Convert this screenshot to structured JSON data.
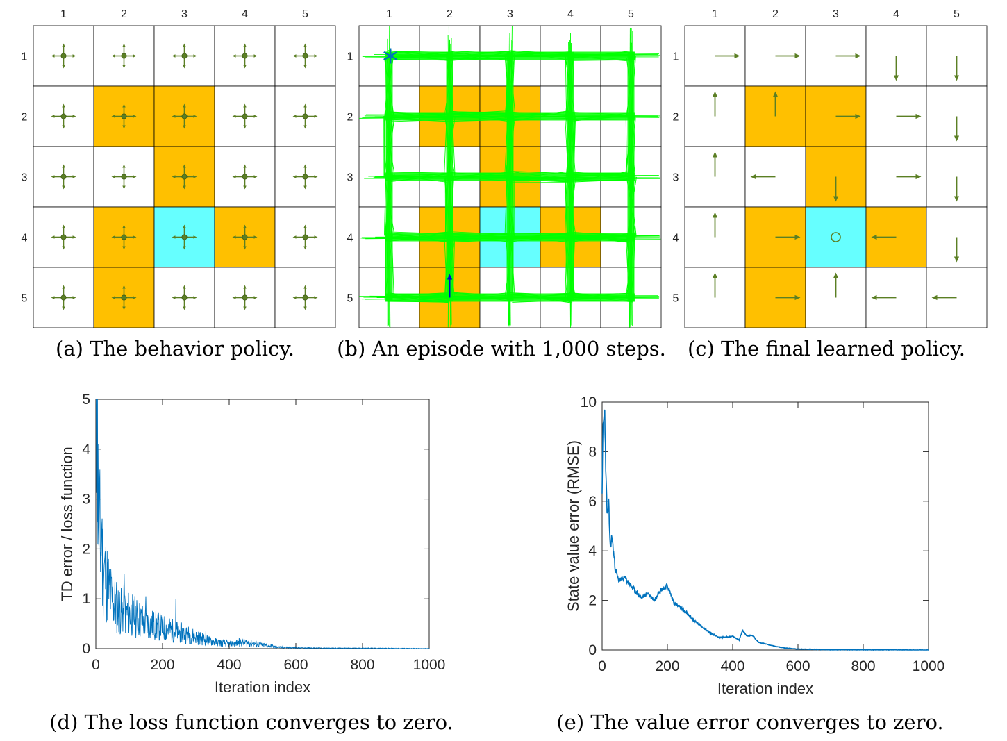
{
  "grid": {
    "row_labels": [
      "1",
      "2",
      "3",
      "4",
      "5"
    ],
    "col_labels": [
      "1",
      "2",
      "3",
      "4",
      "5"
    ],
    "forbidden_cells": [
      [
        2,
        2
      ],
      [
        2,
        3
      ],
      [
        3,
        3
      ],
      [
        4,
        2
      ],
      [
        4,
        4
      ],
      [
        5,
        2
      ]
    ],
    "target_cell": [
      4,
      3
    ],
    "colors": {
      "forbidden": "#FFC000",
      "target": "#66FFFF",
      "arrow": "#5B7F24",
      "trajectory": "#00FF00",
      "start_marker": "#0072BD",
      "final_arrow": "#0000CC"
    }
  },
  "panels": {
    "a": {
      "caption": "(a) The behavior policy.",
      "policy": "uniform",
      "icons": "four-way-arrow-icon"
    },
    "b": {
      "caption": "(b) An episode with 1,000 steps.",
      "start_cell": [
        1,
        1
      ],
      "end_cell": [
        5,
        2
      ],
      "end_direction": "up"
    },
    "c": {
      "caption": "(c) The final learned policy.",
      "policy": [
        [
          "right",
          "right",
          "right",
          "down",
          "down"
        ],
        [
          "up",
          "up",
          "right",
          "right",
          "down"
        ],
        [
          "up",
          "left",
          "down",
          "right",
          "down"
        ],
        [
          "up",
          "right",
          "stay",
          "left",
          "down"
        ],
        [
          "up",
          "right",
          "up",
          "left",
          "left"
        ]
      ]
    }
  },
  "chart_data": [
    {
      "type": "line",
      "panel": "d",
      "caption": "(d) The loss function converges to zero.",
      "xlabel": "Iteration index",
      "ylabel": "TD error / loss function",
      "xlim": [
        0,
        1000
      ],
      "ylim": [
        0,
        5
      ],
      "xticks": [
        0,
        200,
        400,
        600,
        800,
        1000
      ],
      "yticks": [
        0,
        1,
        2,
        3,
        4,
        5
      ],
      "line_color": "#0072BD",
      "x": [
        0,
        5,
        10,
        20,
        30,
        50,
        75,
        100,
        150,
        200,
        250,
        300,
        350,
        400,
        450,
        500,
        550,
        600,
        700,
        800,
        1000
      ],
      "y": [
        4.9,
        4.1,
        2.5,
        1.9,
        1.5,
        1.0,
        0.8,
        0.75,
        0.55,
        0.45,
        0.35,
        0.25,
        0.15,
        0.1,
        0.13,
        0.08,
        0.03,
        0.02,
        0.01,
        0.01,
        0.0
      ],
      "spikes": [
        {
          "x": 3,
          "y": 4.9
        },
        {
          "x": 8,
          "y": 4.1
        },
        {
          "x": 18,
          "y": 2.5
        },
        {
          "x": 40,
          "y": 1.4
        },
        {
          "x": 85,
          "y": 1.5
        },
        {
          "x": 150,
          "y": 1.05
        },
        {
          "x": 240,
          "y": 1.0
        },
        {
          "x": 330,
          "y": 0.35
        },
        {
          "x": 430,
          "y": 0.22
        }
      ]
    },
    {
      "type": "line",
      "panel": "e",
      "caption": "(e) The value error converges to zero.",
      "xlabel": "Iteration index",
      "ylabel": "State value error (RMSE)",
      "xlim": [
        0,
        1000
      ],
      "ylim": [
        0,
        10
      ],
      "xticks": [
        0,
        200,
        400,
        600,
        800,
        1000
      ],
      "yticks": [
        0,
        2,
        4,
        6,
        8,
        10
      ],
      "line_color": "#0072BD",
      "x": [
        0,
        3,
        8,
        12,
        16,
        20,
        25,
        30,
        40,
        50,
        70,
        100,
        120,
        140,
        160,
        175,
        190,
        200,
        220,
        250,
        280,
        300,
        330,
        360,
        400,
        420,
        430,
        445,
        460,
        480,
        500,
        530,
        560,
        600,
        700,
        800,
        1000
      ],
      "y": [
        6.5,
        9.0,
        9.7,
        6.8,
        5.4,
        5.9,
        4.1,
        4.6,
        3.3,
        2.8,
        2.9,
        2.4,
        2.1,
        2.3,
        2.0,
        2.4,
        2.5,
        2.6,
        1.9,
        1.6,
        1.2,
        1.0,
        0.7,
        0.5,
        0.55,
        0.4,
        0.8,
        0.55,
        0.6,
        0.3,
        0.25,
        0.15,
        0.08,
        0.04,
        0.01,
        0.01,
        0.0
      ]
    }
  ]
}
